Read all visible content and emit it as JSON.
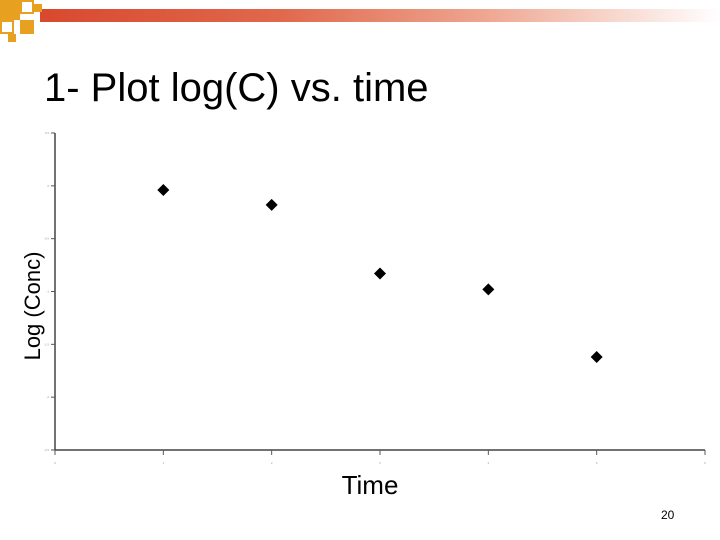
{
  "slide": {
    "title": "1- Plot log(C) vs. time",
    "page_number": "20",
    "accent_color": "#d8492f",
    "decoration_color": "#e8a020"
  },
  "chart_data": {
    "type": "scatter",
    "title": "1- Plot log(C) vs. time",
    "xlabel": "Time",
    "ylabel": "Log (Conc)",
    "x": [
      1,
      2,
      3,
      4,
      5
    ],
    "y": [
      -0.04,
      -0.18,
      -0.83,
      -0.98,
      -1.62
    ],
    "xlim": [
      0,
      6
    ],
    "ylim": [
      -2.5,
      0.5
    ],
    "x_ticks": [
      0,
      1,
      2,
      3,
      4,
      5,
      6
    ],
    "y_ticks": [
      -2.5,
      -2,
      -1.5,
      -1,
      -0.5,
      0,
      0.5
    ],
    "marker": "diamond",
    "marker_color": "#000000",
    "grid": false,
    "legend": "none"
  }
}
